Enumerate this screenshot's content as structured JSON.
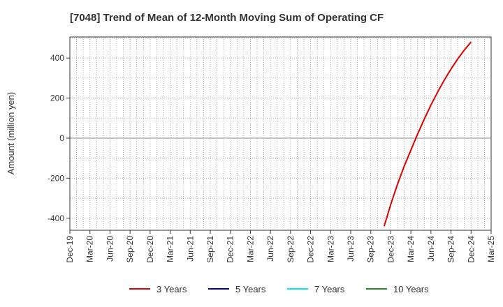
{
  "chart_data": {
    "type": "line",
    "title": "[7048]  Trend of Mean of 12-Month Moving Sum of Operating CF",
    "xlabel": "",
    "ylabel": "Amount (million yen)",
    "ylim": [
      -460,
      505
    ],
    "yticks": [
      -400,
      -200,
      0,
      200,
      400
    ],
    "xticks": [
      "Dec-19",
      "Mar-20",
      "Jun-20",
      "Sep-20",
      "Dec-20",
      "Mar-21",
      "Jun-21",
      "Sep-21",
      "Dec-21",
      "Mar-22",
      "Jun-22",
      "Sep-22",
      "Dec-22",
      "Mar-23",
      "Jun-23",
      "Sep-23",
      "Dec-23",
      "Mar-24",
      "Jun-24",
      "Sep-24",
      "Dec-24",
      "Mar-25"
    ],
    "grid": true,
    "legend_position": "bottom",
    "series": [
      {
        "name": "3 Years",
        "color": "#dd0000",
        "x": [
          "Nov-23",
          "Dec-23",
          "Jan-24",
          "Feb-24",
          "Mar-24",
          "Apr-24",
          "May-24",
          "Jun-24",
          "Jul-24",
          "Aug-24",
          "Sep-24",
          "Oct-24",
          "Nov-24",
          "Dec-24"
        ],
        "values": [
          -440,
          -330,
          -230,
          -140,
          -60,
          20,
          95,
          165,
          230,
          290,
          345,
          395,
          440,
          480
        ]
      },
      {
        "name": "5 Years",
        "color": "#0000cc",
        "x": [],
        "values": []
      },
      {
        "name": "7 Years",
        "color": "#00e5ee",
        "x": [],
        "values": []
      },
      {
        "name": "10 Years",
        "color": "#228b22",
        "x": [],
        "values": []
      }
    ]
  }
}
